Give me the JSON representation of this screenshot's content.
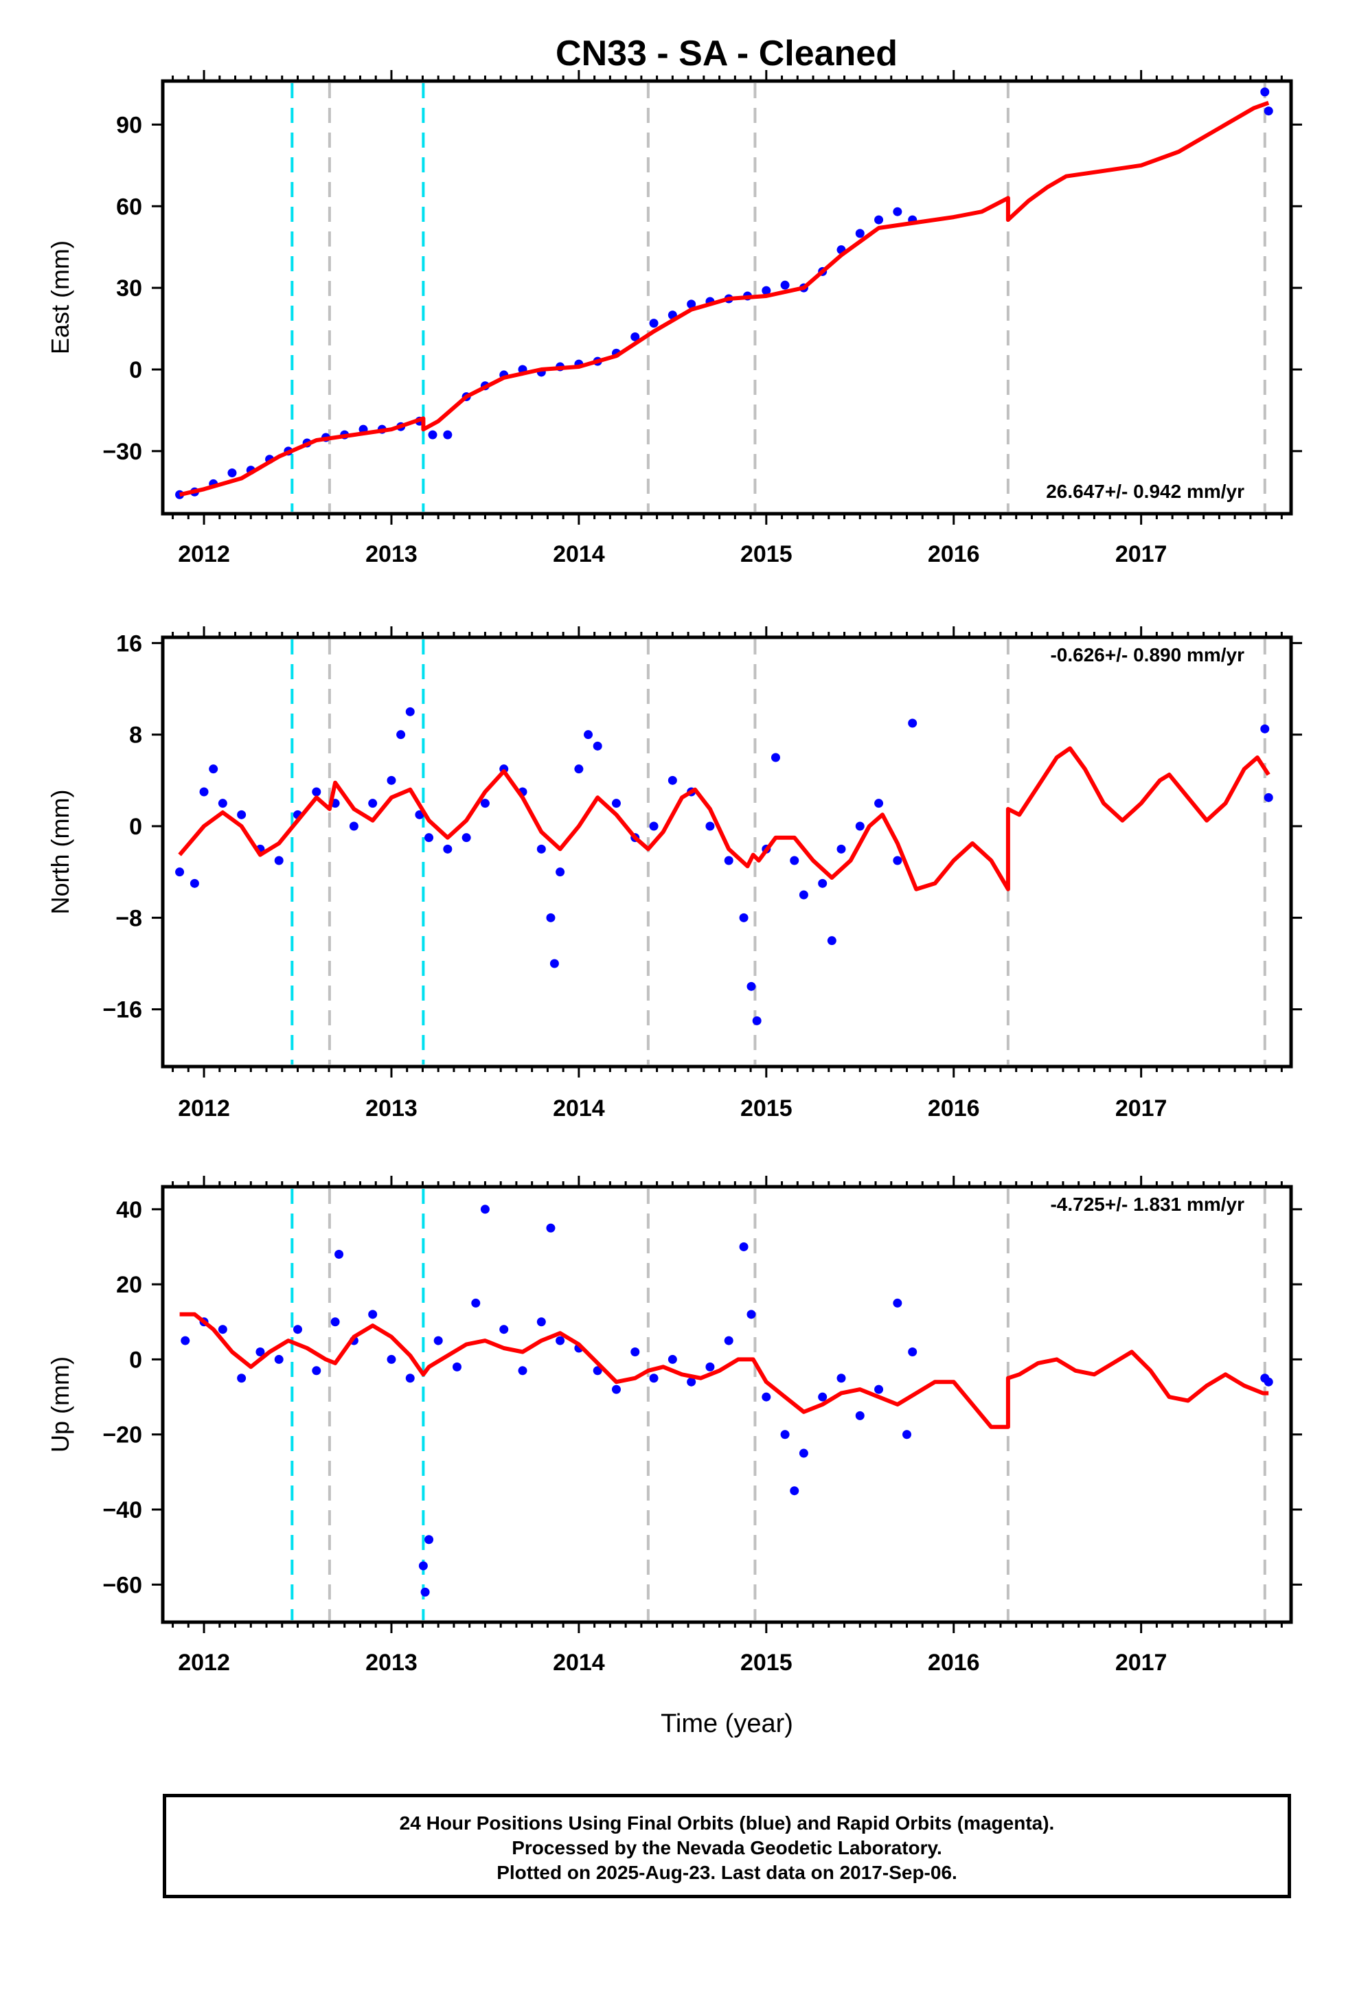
{
  "title": "CN33  - SA - Cleaned",
  "footer": {
    "line1": "24 Hour Positions Using Final Orbits (blue) and Rapid Orbits (magenta).",
    "line2": "Processed by the Nevada Geodetic Laboratory.",
    "line3": "Plotted on 2025-Aug-23. Last data on 2017-Sep-06."
  },
  "colors": {
    "data": "#0000ff",
    "model": "#ff0000",
    "equipment_change": "#c0c0c0",
    "earthquake": "#00e0f0"
  },
  "chart_data": [
    {
      "type": "scatter",
      "panel": "east",
      "ylabel": "East (mm)",
      "xlabel": "",
      "rate_label": "26.647+/- 0.942 mm/yr",
      "xlim": [
        2011.78,
        2017.8
      ],
      "ylim": [
        -53,
        106
      ],
      "yticks": [
        -30,
        0,
        30,
        60,
        90
      ],
      "xticks": [
        2012,
        2013,
        2014,
        2015,
        2016,
        2017
      ],
      "model": [
        [
          2011.87,
          -46
        ],
        [
          2012.0,
          -44
        ],
        [
          2012.2,
          -40
        ],
        [
          2012.4,
          -32
        ],
        [
          2012.6,
          -26
        ],
        [
          2012.8,
          -24
        ],
        [
          2013.0,
          -22
        ],
        [
          2013.17,
          -18
        ],
        [
          2013.17,
          -22
        ],
        [
          2013.25,
          -19
        ],
        [
          2013.4,
          -10
        ],
        [
          2013.6,
          -3
        ],
        [
          2013.8,
          0
        ],
        [
          2014.0,
          1
        ],
        [
          2014.2,
          5
        ],
        [
          2014.4,
          14
        ],
        [
          2014.6,
          22
        ],
        [
          2014.8,
          26
        ],
        [
          2015.0,
          27
        ],
        [
          2015.2,
          30
        ],
        [
          2015.4,
          42
        ],
        [
          2015.6,
          52
        ],
        [
          2015.8,
          54
        ],
        [
          2016.0,
          56
        ],
        [
          2016.15,
          58
        ],
        [
          2016.29,
          63
        ],
        [
          2016.29,
          55
        ],
        [
          2016.4,
          62
        ],
        [
          2016.5,
          67
        ],
        [
          2016.6,
          71
        ],
        [
          2016.8,
          73
        ],
        [
          2017.0,
          75
        ],
        [
          2017.2,
          80
        ],
        [
          2017.4,
          88
        ],
        [
          2017.6,
          96
        ],
        [
          2017.68,
          98
        ]
      ],
      "points": [
        [
          2011.87,
          -46
        ],
        [
          2011.95,
          -45
        ],
        [
          2012.05,
          -42
        ],
        [
          2012.15,
          -38
        ],
        [
          2012.25,
          -37
        ],
        [
          2012.35,
          -33
        ],
        [
          2012.45,
          -30
        ],
        [
          2012.55,
          -27
        ],
        [
          2012.65,
          -25
        ],
        [
          2012.75,
          -24
        ],
        [
          2012.85,
          -22
        ],
        [
          2012.95,
          -22
        ],
        [
          2013.05,
          -21
        ],
        [
          2013.15,
          -19
        ],
        [
          2013.22,
          -24
        ],
        [
          2013.3,
          -24
        ],
        [
          2013.4,
          -10
        ],
        [
          2013.5,
          -6
        ],
        [
          2013.6,
          -2
        ],
        [
          2013.7,
          0
        ],
        [
          2013.8,
          -1
        ],
        [
          2013.9,
          1
        ],
        [
          2014.0,
          2
        ],
        [
          2014.1,
          3
        ],
        [
          2014.2,
          6
        ],
        [
          2014.3,
          12
        ],
        [
          2014.4,
          17
        ],
        [
          2014.5,
          20
        ],
        [
          2014.6,
          24
        ],
        [
          2014.7,
          25
        ],
        [
          2014.8,
          26
        ],
        [
          2014.9,
          27
        ],
        [
          2015.0,
          29
        ],
        [
          2015.1,
          31
        ],
        [
          2015.2,
          30
        ],
        [
          2015.3,
          36
        ],
        [
          2015.4,
          44
        ],
        [
          2015.5,
          50
        ],
        [
          2015.6,
          55
        ],
        [
          2015.7,
          58
        ],
        [
          2015.78,
          55
        ],
        [
          2017.66,
          102
        ],
        [
          2017.68,
          95
        ]
      ]
    },
    {
      "type": "scatter",
      "panel": "north",
      "ylabel": "North (mm)",
      "xlabel": "",
      "rate_label": "-0.626+/- 0.890 mm/yr",
      "xlim": [
        2011.78,
        2017.8
      ],
      "ylim": [
        -21,
        16.5
      ],
      "yticks": [
        -16,
        -8,
        0,
        8,
        16
      ],
      "xticks": [
        2012,
        2013,
        2014,
        2015,
        2016,
        2017
      ],
      "model": [
        [
          2011.87,
          -2.5
        ],
        [
          2012.0,
          0
        ],
        [
          2012.1,
          1.2
        ],
        [
          2012.2,
          0
        ],
        [
          2012.3,
          -2.5
        ],
        [
          2012.4,
          -1.5
        ],
        [
          2012.5,
          0.5
        ],
        [
          2012.6,
          2.5
        ],
        [
          2012.67,
          1.5
        ],
        [
          2012.7,
          3.8
        ],
        [
          2012.8,
          1.5
        ],
        [
          2012.9,
          0.5
        ],
        [
          2013.0,
          2.5
        ],
        [
          2013.1,
          3.2
        ],
        [
          2013.2,
          0.5
        ],
        [
          2013.3,
          -1
        ],
        [
          2013.4,
          0.5
        ],
        [
          2013.5,
          3
        ],
        [
          2013.6,
          4.8
        ],
        [
          2013.7,
          2.5
        ],
        [
          2013.8,
          -0.5
        ],
        [
          2013.9,
          -2
        ],
        [
          2014.0,
          0
        ],
        [
          2014.1,
          2.5
        ],
        [
          2014.2,
          1
        ],
        [
          2014.3,
          -1
        ],
        [
          2014.37,
          -2
        ],
        [
          2014.45,
          -0.5
        ],
        [
          2014.55,
          2.5
        ],
        [
          2014.62,
          3.2
        ],
        [
          2014.7,
          1.5
        ],
        [
          2014.8,
          -2
        ],
        [
          2014.9,
          -3.5
        ],
        [
          2014.93,
          -2.5
        ],
        [
          2014.96,
          -3
        ],
        [
          2015.05,
          -1
        ],
        [
          2015.15,
          -1
        ],
        [
          2015.25,
          -3
        ],
        [
          2015.35,
          -4.5
        ],
        [
          2015.45,
          -3
        ],
        [
          2015.55,
          0
        ],
        [
          2015.62,
          1
        ],
        [
          2015.7,
          -1.5
        ],
        [
          2015.8,
          -5.5
        ],
        [
          2015.9,
          -5
        ],
        [
          2016.0,
          -3
        ],
        [
          2016.1,
          -1.5
        ],
        [
          2016.2,
          -3
        ],
        [
          2016.29,
          -5.5
        ],
        [
          2016.29,
          1.5
        ],
        [
          2016.35,
          1
        ],
        [
          2016.45,
          3.5
        ],
        [
          2016.55,
          6
        ],
        [
          2016.62,
          6.8
        ],
        [
          2016.7,
          5
        ],
        [
          2016.8,
          2
        ],
        [
          2016.9,
          0.5
        ],
        [
          2017.0,
          2
        ],
        [
          2017.1,
          4
        ],
        [
          2017.15,
          4.5
        ],
        [
          2017.25,
          2.5
        ],
        [
          2017.35,
          0.5
        ],
        [
          2017.45,
          2
        ],
        [
          2017.55,
          5
        ],
        [
          2017.62,
          6
        ],
        [
          2017.68,
          4.5
        ]
      ],
      "points": [
        [
          2011.87,
          -4
        ],
        [
          2011.95,
          -5
        ],
        [
          2012.0,
          3
        ],
        [
          2012.05,
          5
        ],
        [
          2012.1,
          2
        ],
        [
          2012.2,
          1
        ],
        [
          2012.3,
          -2
        ],
        [
          2012.4,
          -3
        ],
        [
          2012.5,
          1
        ],
        [
          2012.6,
          3
        ],
        [
          2012.7,
          2
        ],
        [
          2012.8,
          0
        ],
        [
          2012.9,
          2
        ],
        [
          2013.0,
          4
        ],
        [
          2013.05,
          8
        ],
        [
          2013.1,
          10
        ],
        [
          2013.15,
          1
        ],
        [
          2013.2,
          -1
        ],
        [
          2013.3,
          -2
        ],
        [
          2013.4,
          -1
        ],
        [
          2013.5,
          2
        ],
        [
          2013.6,
          5
        ],
        [
          2013.7,
          3
        ],
        [
          2013.8,
          -2
        ],
        [
          2013.85,
          -8
        ],
        [
          2013.87,
          -12
        ],
        [
          2013.9,
          -4
        ],
        [
          2014.0,
          5
        ],
        [
          2014.05,
          8
        ],
        [
          2014.1,
          7
        ],
        [
          2014.2,
          2
        ],
        [
          2014.3,
          -1
        ],
        [
          2014.4,
          0
        ],
        [
          2014.5,
          4
        ],
        [
          2014.6,
          3
        ],
        [
          2014.7,
          0
        ],
        [
          2014.8,
          -3
        ],
        [
          2014.88,
          -8
        ],
        [
          2014.92,
          -14
        ],
        [
          2014.95,
          -17
        ],
        [
          2015.0,
          -2
        ],
        [
          2015.05,
          6
        ],
        [
          2015.15,
          -3
        ],
        [
          2015.2,
          -6
        ],
        [
          2015.3,
          -5
        ],
        [
          2015.35,
          -10
        ],
        [
          2015.4,
          -2
        ],
        [
          2015.5,
          0
        ],
        [
          2015.6,
          2
        ],
        [
          2015.7,
          -3
        ],
        [
          2015.78,
          9
        ],
        [
          2017.66,
          8.5
        ],
        [
          2017.68,
          2.5
        ]
      ]
    },
    {
      "type": "scatter",
      "panel": "up",
      "ylabel": "Up (mm)",
      "xlabel": "Time (year)",
      "rate_label": "-4.725+/- 1.831 mm/yr",
      "xlim": [
        2011.78,
        2017.8
      ],
      "ylim": [
        -70,
        46
      ],
      "yticks": [
        -60,
        -40,
        -20,
        0,
        20,
        40
      ],
      "xticks": [
        2012,
        2013,
        2014,
        2015,
        2016,
        2017
      ],
      "model": [
        [
          2011.87,
          12
        ],
        [
          2011.95,
          12
        ],
        [
          2012.05,
          8
        ],
        [
          2012.15,
          2
        ],
        [
          2012.25,
          -2
        ],
        [
          2012.35,
          2
        ],
        [
          2012.45,
          5
        ],
        [
          2012.55,
          3
        ],
        [
          2012.65,
          0
        ],
        [
          2012.7,
          -1
        ],
        [
          2012.8,
          6
        ],
        [
          2012.9,
          9
        ],
        [
          2013.0,
          6
        ],
        [
          2013.1,
          1
        ],
        [
          2013.17,
          -4
        ],
        [
          2013.2,
          -2
        ],
        [
          2013.3,
          1
        ],
        [
          2013.4,
          4
        ],
        [
          2013.5,
          5
        ],
        [
          2013.6,
          3
        ],
        [
          2013.7,
          2
        ],
        [
          2013.8,
          5
        ],
        [
          2013.9,
          7
        ],
        [
          2014.0,
          4
        ],
        [
          2014.1,
          -1
        ],
        [
          2014.2,
          -6
        ],
        [
          2014.3,
          -5
        ],
        [
          2014.37,
          -3
        ],
        [
          2014.45,
          -2
        ],
        [
          2014.55,
          -4
        ],
        [
          2014.65,
          -5
        ],
        [
          2014.75,
          -3
        ],
        [
          2014.85,
          0
        ],
        [
          2014.93,
          0
        ],
        [
          2015.0,
          -6
        ],
        [
          2015.1,
          -10
        ],
        [
          2015.2,
          -14
        ],
        [
          2015.3,
          -12
        ],
        [
          2015.4,
          -9
        ],
        [
          2015.5,
          -8
        ],
        [
          2015.6,
          -10
        ],
        [
          2015.7,
          -12
        ],
        [
          2015.8,
          -9
        ],
        [
          2015.9,
          -6
        ],
        [
          2016.0,
          -6
        ],
        [
          2016.1,
          -12
        ],
        [
          2016.2,
          -18
        ],
        [
          2016.29,
          -18
        ],
        [
          2016.29,
          -5
        ],
        [
          2016.35,
          -4
        ],
        [
          2016.45,
          -1
        ],
        [
          2016.55,
          0
        ],
        [
          2016.65,
          -3
        ],
        [
          2016.75,
          -4
        ],
        [
          2016.85,
          -1
        ],
        [
          2016.95,
          2
        ],
        [
          2017.05,
          -3
        ],
        [
          2017.15,
          -10
        ],
        [
          2017.25,
          -11
        ],
        [
          2017.35,
          -7
        ],
        [
          2017.45,
          -4
        ],
        [
          2017.55,
          -7
        ],
        [
          2017.65,
          -9
        ],
        [
          2017.68,
          -9
        ]
      ],
      "points": [
        [
          2011.9,
          5
        ],
        [
          2012.0,
          10
        ],
        [
          2012.1,
          8
        ],
        [
          2012.2,
          -5
        ],
        [
          2012.3,
          2
        ],
        [
          2012.4,
          0
        ],
        [
          2012.5,
          8
        ],
        [
          2012.6,
          -3
        ],
        [
          2012.7,
          10
        ],
        [
          2012.72,
          28
        ],
        [
          2012.8,
          5
        ],
        [
          2012.9,
          12
        ],
        [
          2013.0,
          0
        ],
        [
          2013.1,
          -5
        ],
        [
          2013.17,
          -55
        ],
        [
          2013.18,
          -62
        ],
        [
          2013.2,
          -48
        ],
        [
          2013.25,
          5
        ],
        [
          2013.35,
          -2
        ],
        [
          2013.45,
          15
        ],
        [
          2013.5,
          40
        ],
        [
          2013.6,
          8
        ],
        [
          2013.7,
          -3
        ],
        [
          2013.8,
          10
        ],
        [
          2013.85,
          35
        ],
        [
          2013.9,
          5
        ],
        [
          2014.0,
          3
        ],
        [
          2014.1,
          -3
        ],
        [
          2014.2,
          -8
        ],
        [
          2014.3,
          2
        ],
        [
          2014.4,
          -5
        ],
        [
          2014.5,
          0
        ],
        [
          2014.6,
          -6
        ],
        [
          2014.7,
          -2
        ],
        [
          2014.8,
          5
        ],
        [
          2014.88,
          30
        ],
        [
          2014.92,
          12
        ],
        [
          2015.0,
          -10
        ],
        [
          2015.1,
          -20
        ],
        [
          2015.15,
          -35
        ],
        [
          2015.2,
          -25
        ],
        [
          2015.3,
          -10
        ],
        [
          2015.4,
          -5
        ],
        [
          2015.5,
          -15
        ],
        [
          2015.6,
          -8
        ],
        [
          2015.7,
          15
        ],
        [
          2015.75,
          -20
        ],
        [
          2015.78,
          2
        ],
        [
          2017.66,
          -5
        ],
        [
          2017.68,
          -6
        ]
      ]
    }
  ],
  "vlines": {
    "gray": [
      2012.67,
      2014.37,
      2014.94,
      2016.29,
      2017.66
    ],
    "cyan": [
      2012.47,
      2013.17
    ]
  }
}
